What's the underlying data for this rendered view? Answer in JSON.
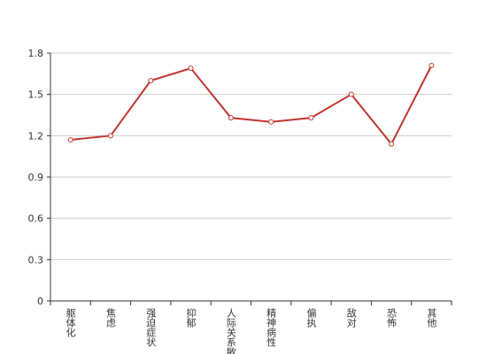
{
  "chart_data": {
    "type": "line",
    "categories": [
      "躯体化",
      "焦虑",
      "强迫症状",
      "抑郁",
      "人际关系敏感",
      "精神病性",
      "偏执",
      "敌对",
      "恐怖",
      "其他"
    ],
    "series": [
      {
        "color": "#c23531",
        "values": [
          1.17,
          1.2,
          1.6,
          1.69,
          1.33,
          1.3,
          1.33,
          1.5,
          1.14,
          1.71
        ]
      }
    ],
    "ylim": [
      0,
      1.8
    ],
    "yticks": [
      0,
      0.3,
      0.6,
      0.9,
      1.2,
      1.5,
      1.8
    ],
    "grid": true
  }
}
